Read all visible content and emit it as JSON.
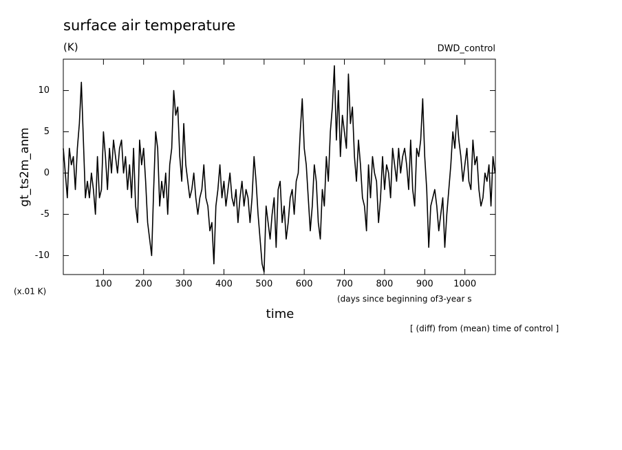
{
  "chart_data": {
    "type": "line",
    "title": "surface air temperature",
    "subtitle": "(K)",
    "run_label": "DWD_control",
    "y_label": "gt_ts2m_anm",
    "unit_note": "(x.01 K)",
    "x_note": "(days since beginning of3-year s",
    "x_label": "time",
    "footnote": "[ (diff) from (mean) time of control ]",
    "xlim": [
      0,
      1076
    ],
    "ylim": [
      -12.3,
      13.8
    ],
    "xticks": [
      100,
      200,
      300,
      400,
      500,
      600,
      700,
      800,
      900,
      1000
    ],
    "yticks": [
      -10,
      -5,
      0,
      5,
      10
    ],
    "x": [
      0,
      5,
      10,
      15,
      20,
      25,
      30,
      35,
      40,
      45,
      50,
      55,
      60,
      65,
      70,
      75,
      80,
      85,
      90,
      95,
      100,
      105,
      110,
      115,
      120,
      125,
      130,
      135,
      140,
      145,
      150,
      155,
      160,
      165,
      170,
      175,
      180,
      185,
      190,
      195,
      200,
      205,
      210,
      215,
      220,
      225,
      230,
      235,
      240,
      245,
      250,
      255,
      260,
      265,
      270,
      275,
      280,
      285,
      290,
      295,
      300,
      305,
      310,
      315,
      320,
      325,
      330,
      335,
      340,
      345,
      350,
      355,
      360,
      365,
      370,
      375,
      380,
      385,
      390,
      395,
      400,
      405,
      410,
      415,
      420,
      425,
      430,
      435,
      440,
      445,
      450,
      455,
      460,
      465,
      470,
      475,
      480,
      485,
      490,
      495,
      500,
      505,
      510,
      515,
      520,
      525,
      530,
      535,
      540,
      545,
      550,
      555,
      560,
      565,
      570,
      575,
      580,
      585,
      590,
      595,
      600,
      605,
      610,
      615,
      620,
      625,
      630,
      635,
      640,
      645,
      650,
      655,
      660,
      665,
      670,
      675,
      680,
      685,
      690,
      695,
      700,
      705,
      710,
      715,
      720,
      725,
      730,
      735,
      740,
      745,
      750,
      755,
      760,
      765,
      770,
      775,
      780,
      785,
      790,
      795,
      800,
      805,
      810,
      815,
      820,
      825,
      830,
      835,
      840,
      845,
      850,
      855,
      860,
      865,
      870,
      875,
      880,
      885,
      890,
      895,
      900,
      905,
      910,
      915,
      920,
      925,
      930,
      935,
      940,
      945,
      950,
      955,
      960,
      965,
      970,
      975,
      980,
      985,
      990,
      995,
      1000,
      1005,
      1010,
      1015,
      1020,
      1025,
      1030,
      1035,
      1040,
      1045,
      1050,
      1055,
      1060,
      1065,
      1070,
      1075
    ],
    "series": [
      {
        "color": "#000000",
        "values": [
          3,
          0,
          -3,
          3,
          1,
          2,
          -2,
          3,
          6,
          11,
          4,
          -3,
          -1,
          -3,
          0,
          -2,
          -5,
          2,
          -3,
          -2,
          5,
          2,
          -2,
          3,
          0,
          4,
          2,
          0,
          3,
          4,
          0,
          2,
          -2,
          1,
          -3,
          3,
          -4,
          -6,
          4,
          1,
          3,
          -1,
          -6,
          -8,
          -10,
          -2,
          5,
          3,
          -4,
          -1,
          -3,
          0,
          -5,
          1,
          3,
          10,
          7,
          8,
          2,
          -1,
          6,
          1,
          -1,
          -3,
          -2,
          0,
          -3,
          -5,
          -3,
          -2,
          1,
          -3,
          -4,
          -7,
          -6,
          -11,
          -4,
          -2,
          1,
          -3,
          -1,
          -4,
          -2,
          0,
          -3,
          -4,
          -2,
          -6,
          -3,
          -1,
          -4,
          -2,
          -3,
          -6,
          -3,
          2,
          -1,
          -5,
          -8,
          -11,
          -12,
          -4,
          -6,
          -8,
          -5,
          -3,
          -9,
          -2,
          -1,
          -6,
          -4,
          -8,
          -6,
          -3,
          -2,
          -5,
          -1,
          0,
          5,
          9,
          3,
          1,
          -3,
          -7,
          -4,
          1,
          -1,
          -6,
          -8,
          -2,
          -4,
          2,
          -1,
          5,
          8,
          13,
          4,
          10,
          2,
          7,
          5,
          3,
          12,
          6,
          8,
          2,
          -1,
          4,
          1,
          -3,
          -4,
          -7,
          1,
          -3,
          2,
          0,
          -1,
          -6,
          -3,
          2,
          -2,
          1,
          0,
          -3,
          3,
          1,
          -1,
          3,
          0,
          2,
          3,
          1,
          -2,
          4,
          -2,
          -4,
          3,
          2,
          4,
          9,
          2,
          -2,
          -9,
          -4,
          -3,
          -2,
          -4,
          -7,
          -5,
          -3,
          -9,
          -5,
          -2,
          1,
          5,
          3,
          7,
          4,
          2,
          -1,
          1,
          3,
          -1,
          -2,
          4,
          1,
          2,
          -2,
          -4,
          -3,
          0,
          -1,
          1,
          -4,
          2,
          0
        ]
      }
    ]
  }
}
